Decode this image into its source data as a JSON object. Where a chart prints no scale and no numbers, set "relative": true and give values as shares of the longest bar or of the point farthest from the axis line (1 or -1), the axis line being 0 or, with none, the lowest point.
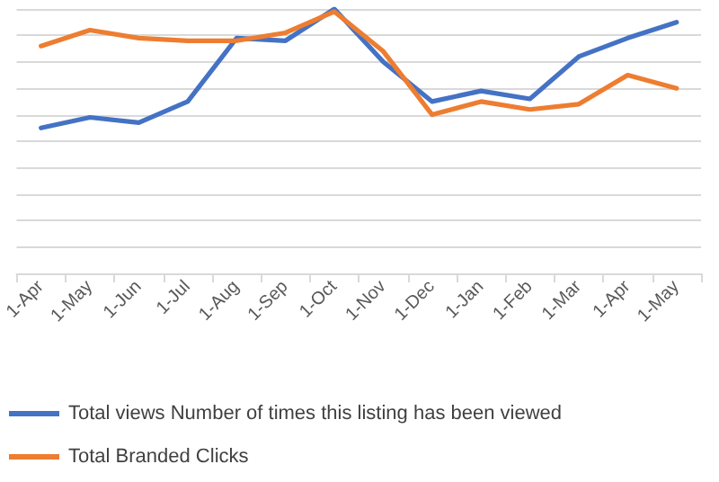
{
  "chart_data": {
    "type": "line",
    "relative": true,
    "grid": "y",
    "legend": "bottom",
    "marker": "none",
    "line_style": "solid",
    "categories": [
      "1-Apr",
      "1-May",
      "1-Jun",
      "1-Jul",
      "1-Aug",
      "1-Sep",
      "1-Oct",
      "1-Nov",
      "1-Dec",
      "1-Jan",
      "1-Feb",
      "1-Mar",
      "1-Apr",
      "1-May"
    ],
    "series": [
      {
        "name": "Total views Number of times this listing has been viewed",
        "color": "#4472c4",
        "values": [
          0.55,
          0.59,
          0.57,
          0.65,
          0.89,
          0.88,
          1,
          0.8,
          0.65,
          0.69,
          0.66,
          0.82,
          0.89,
          0.95
        ]
      },
      {
        "name": "Total Branded Clicks",
        "color": "#ed7d31",
        "values": [
          0.86,
          0.92,
          0.89,
          0.88,
          0.88,
          0.91,
          0.99,
          0.84,
          0.6,
          0.65,
          0.62,
          0.64,
          0.75,
          0.7
        ]
      }
    ]
  }
}
